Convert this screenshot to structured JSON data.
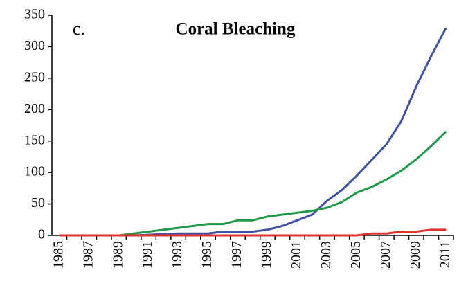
{
  "chart_data": {
    "type": "line",
    "title": "Coral Bleaching",
    "annotation": "c.",
    "categories": [
      "1985",
      null,
      "1987",
      null,
      "1989",
      null,
      "1991",
      null,
      "1993",
      null,
      "1995",
      null,
      "1997",
      null,
      "1999",
      null,
      "2001",
      null,
      "2003",
      null,
      "2005",
      null,
      "2007",
      null,
      "2009",
      null,
      "2011"
    ],
    "series": [
      {
        "color": "#3f51a3",
        "values": [
          0,
          0,
          0,
          0,
          0,
          0,
          1,
          2,
          3,
          3,
          3,
          6,
          6,
          6,
          9,
          15,
          24,
          33,
          55,
          72,
          95,
          120,
          145,
          182,
          237,
          285,
          330
        ]
      },
      {
        "color": "#1e9a48",
        "values": [
          0,
          0,
          0,
          0,
          0,
          3,
          6,
          9,
          12,
          15,
          18,
          18,
          24,
          24,
          30,
          33,
          36,
          39,
          44,
          53,
          68,
          77,
          89,
          103,
          121,
          142,
          165
        ]
      },
      {
        "color": "#e0312d",
        "values": [
          0,
          0,
          0,
          0,
          0,
          0,
          0,
          0,
          0,
          0,
          0,
          0,
          0,
          0,
          0,
          0,
          0,
          0,
          0,
          0,
          0,
          3,
          3,
          6,
          6,
          9,
          9
        ]
      }
    ],
    "ylim": [
      0,
      350
    ],
    "yticks": [
      0,
      50,
      100,
      150,
      200,
      250,
      300,
      350
    ]
  }
}
